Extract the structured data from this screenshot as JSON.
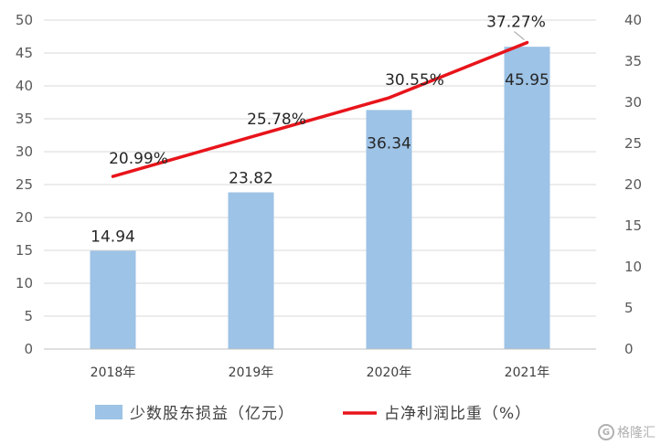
{
  "chart_data": {
    "type": "bar+line",
    "categories": [
      "2018年",
      "2019年",
      "2020年",
      "2021年"
    ],
    "series": [
      {
        "name": "少数股东损益（亿元）",
        "type": "bar",
        "axis": "left",
        "color": "#9DC3E6",
        "values": [
          14.94,
          23.82,
          36.34,
          45.95
        ],
        "labels": [
          "14.94",
          "23.82",
          "36.34",
          "45.95"
        ]
      },
      {
        "name": "占净利润比重（%）",
        "type": "line",
        "axis": "right",
        "color": "#E8141B",
        "values": [
          20.99,
          25.78,
          30.55,
          37.27
        ],
        "labels": [
          "20.99%",
          "25.78%",
          "30.55%",
          "37.27%"
        ]
      }
    ],
    "y_left": {
      "ylim": [
        0,
        50
      ],
      "ticks": [
        "0",
        "5",
        "10",
        "15",
        "20",
        "25",
        "30",
        "35",
        "40",
        "45",
        "50"
      ]
    },
    "y_right": {
      "ylim": [
        0,
        40
      ],
      "ticks": [
        "0",
        "5",
        "10",
        "15",
        "20",
        "25",
        "30",
        "35",
        "40"
      ]
    },
    "grid": true,
    "legend_position": "bottom"
  },
  "watermark": {
    "text": "格隆汇",
    "logo": "G"
  }
}
